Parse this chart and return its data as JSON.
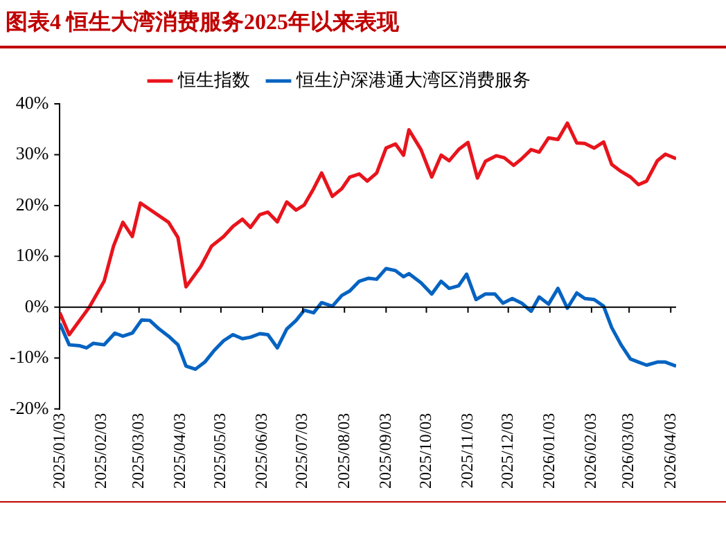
{
  "chart_data": {
    "type": "line",
    "title": "图表4  恒生大湾消费服务2025年以来表现",
    "xlim": [
      "2025-01-03",
      "2026-04-07"
    ],
    "xticks": [
      {
        "value": "2025-01-03",
        "label": "2025/01/03"
      },
      {
        "value": "2025-02-03",
        "label": "2025/02/03"
      },
      {
        "value": "2025-03-03",
        "label": "2025/03/03"
      },
      {
        "value": "2025-04-03",
        "label": "2025/04/03"
      },
      {
        "value": "2025-05-03",
        "label": "2025/05/03"
      },
      {
        "value": "2025-06-03",
        "label": "2025/06/03"
      },
      {
        "value": "2025-07-03",
        "label": "2025/07/03"
      },
      {
        "value": "2025-08-03",
        "label": "2025/08/03"
      },
      {
        "value": "2025-09-03",
        "label": "2025/09/03"
      },
      {
        "value": "2025-10-03",
        "label": "2025/10/03"
      },
      {
        "value": "2025-11-03",
        "label": "2025/11/03"
      },
      {
        "value": "2025-12-03",
        "label": "2025/12/03"
      },
      {
        "value": "2026-01-03",
        "label": "2026/01/03"
      },
      {
        "value": "2026-02-03",
        "label": "2026/02/03"
      },
      {
        "value": "2026-03-03",
        "label": "2026/03/03"
      },
      {
        "value": "2026-04-03",
        "label": "2026/04/03"
      }
    ],
    "ylim": [
      -20,
      40
    ],
    "yticks": [
      {
        "value": -20,
        "label": "-20%"
      },
      {
        "value": -10,
        "label": "-10%"
      },
      {
        "value": 0,
        "label": "0%"
      },
      {
        "value": 10,
        "label": "10%"
      },
      {
        "value": 20,
        "label": "20%"
      },
      {
        "value": 30,
        "label": "30%"
      },
      {
        "value": 40,
        "label": "40%"
      }
    ],
    "grid": false,
    "ref_lines": [
      {
        "axis": "y",
        "value": 0,
        "color": "#000000"
      }
    ],
    "legend": "top",
    "marker": "none",
    "line_style": "solid",
    "series": [
      {
        "name": "恒生指数",
        "color": "#e8141c",
        "x": [
          "2025-01-03",
          "2025-01-10",
          "2025-01-25",
          "2025-02-05",
          "2025-02-12",
          "2025-02-19",
          "2025-02-26",
          "2025-03-04",
          "2025-03-25",
          "2025-04-01",
          "2025-04-07",
          "2025-04-18",
          "2025-04-26",
          "2025-05-05",
          "2025-05-12",
          "2025-05-19",
          "2025-05-25",
          "2025-06-01",
          "2025-06-07",
          "2025-06-14",
          "2025-06-21",
          "2025-06-28",
          "2025-07-04",
          "2025-07-11",
          "2025-07-17",
          "2025-07-25",
          "2025-08-01",
          "2025-08-07",
          "2025-08-14",
          "2025-08-20",
          "2025-08-27",
          "2025-09-03",
          "2025-09-10",
          "2025-09-16",
          "2025-09-20",
          "2025-09-29",
          "2025-10-07",
          "2025-10-14",
          "2025-10-20",
          "2025-10-27",
          "2025-11-03",
          "2025-11-10",
          "2025-11-16",
          "2025-11-24",
          "2025-11-30",
          "2025-12-07",
          "2025-12-13",
          "2025-12-20",
          "2025-12-26",
          "2026-01-02",
          "2026-01-09",
          "2026-01-16",
          "2026-01-23",
          "2026-01-29",
          "2026-02-05",
          "2026-02-12",
          "2026-02-18",
          "2026-02-25",
          "2026-03-04",
          "2026-03-10",
          "2026-03-16",
          "2026-03-24",
          "2026-03-30",
          "2026-04-07"
        ],
        "values": [
          -1.1,
          -5.4,
          0,
          5.1,
          12,
          16.7,
          13.9,
          20.5,
          16.7,
          13.7,
          4,
          8,
          12,
          13.9,
          15.9,
          17.3,
          15.7,
          18.2,
          18.7,
          16.8,
          20.7,
          19.1,
          20.1,
          23.3,
          26.4,
          21.8,
          23.3,
          25.6,
          26.2,
          24.8,
          26.4,
          31.3,
          32.1,
          29.9,
          34.9,
          31,
          25.6,
          29.9,
          28.8,
          31,
          32.4,
          25.4,
          28.7,
          29.8,
          29.4,
          27.9,
          29.2,
          31,
          30.5,
          33.3,
          33,
          36.2,
          32.3,
          32.2,
          31.3,
          32.5,
          28.1,
          26.7,
          25.6,
          24.1,
          24.8,
          28.8,
          30.1,
          29.2
        ]
      },
      {
        "name": "恒生沪深港通大湾区消费服务",
        "color": "#0563c1",
        "x": [
          "2025-01-03",
          "2025-01-10",
          "2025-01-18",
          "2025-01-23",
          "2025-01-28",
          "2025-02-05",
          "2025-02-13",
          "2025-02-19",
          "2025-02-26",
          "2025-03-05",
          "2025-03-11",
          "2025-03-18",
          "2025-03-25",
          "2025-04-01",
          "2025-04-07",
          "2025-04-14",
          "2025-04-21",
          "2025-04-28",
          "2025-05-05",
          "2025-05-12",
          "2025-05-19",
          "2025-05-25",
          "2025-06-01",
          "2025-06-07",
          "2025-06-14",
          "2025-06-21",
          "2025-06-28",
          "2025-07-04",
          "2025-07-11",
          "2025-07-17",
          "2025-07-25",
          "2025-08-01",
          "2025-08-07",
          "2025-08-14",
          "2025-08-21",
          "2025-08-27",
          "2025-09-03",
          "2025-09-10",
          "2025-09-16",
          "2025-09-20",
          "2025-09-29",
          "2025-10-07",
          "2025-10-14",
          "2025-10-20",
          "2025-10-27",
          "2025-11-02",
          "2025-11-09",
          "2025-11-16",
          "2025-11-23",
          "2025-11-29",
          "2025-12-06",
          "2025-12-13",
          "2025-12-20",
          "2025-12-26",
          "2026-01-02",
          "2026-01-09",
          "2026-01-16",
          "2026-01-23",
          "2026-01-29",
          "2026-02-05",
          "2026-02-12",
          "2026-02-18",
          "2026-02-25",
          "2026-03-04",
          "2026-03-10",
          "2026-03-16",
          "2026-03-24",
          "2026-03-30",
          "2026-04-07"
        ],
        "values": [
          -3.2,
          -7.4,
          -7.6,
          -8,
          -7.1,
          -7.4,
          -5.1,
          -5.7,
          -5.1,
          -2.5,
          -2.6,
          -4.3,
          -5.7,
          -7.4,
          -11.6,
          -12.2,
          -10.8,
          -8.5,
          -6.6,
          -5.4,
          -6.2,
          -5.9,
          -5.2,
          -5.4,
          -8,
          -4.3,
          -2.6,
          -0.6,
          -1.1,
          0.9,
          0.2,
          2.3,
          3.2,
          5.1,
          5.7,
          5.5,
          7.6,
          7.2,
          6,
          6.6,
          4.8,
          2.6,
          5.1,
          3.7,
          4.2,
          6.5,
          1.5,
          2.6,
          2.6,
          0.8,
          1.7,
          0.8,
          -0.8,
          2,
          0.6,
          3.7,
          -0.2,
          2.8,
          1.7,
          1.5,
          0.2,
          -4,
          -7.4,
          -10.2,
          -10.8,
          -11.4,
          -10.8,
          -10.8,
          -11.6
        ]
      }
    ]
  }
}
